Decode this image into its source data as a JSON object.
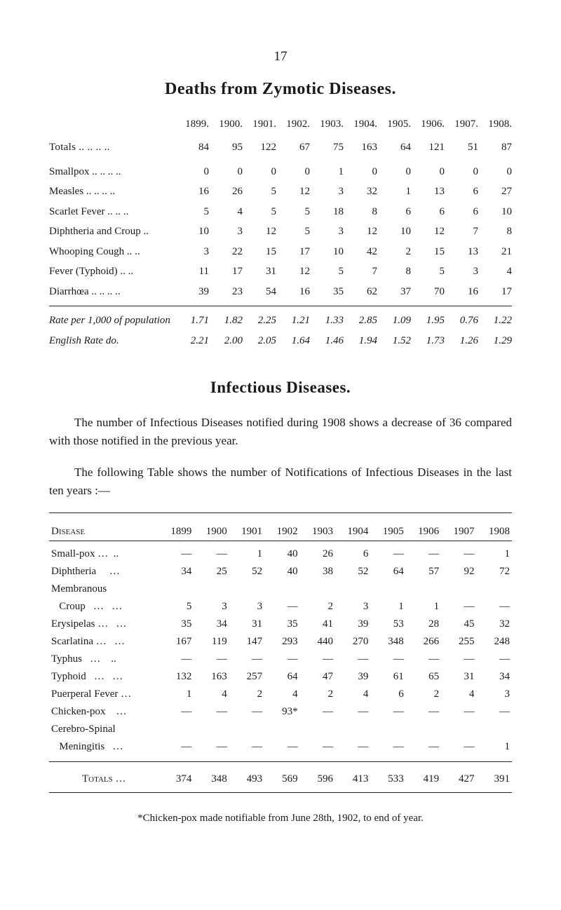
{
  "page_number": "17",
  "title": "Deaths from Zymotic Diseases.",
  "deaths_table": {
    "years": [
      "1899.",
      "1900.",
      "1901.",
      "1902.",
      "1903.",
      "1904.",
      "1905.",
      "1906.",
      "1907.",
      "1908."
    ],
    "rows": [
      {
        "label": "Totals    .. .. .. ..",
        "class": "smallcaps totals-lbl",
        "values": [
          "84",
          "95",
          "122",
          "67",
          "75",
          "163",
          "64",
          "121",
          "51",
          "87"
        ]
      },
      {
        "label": "Smallpox  .. .. .. ..",
        "values": [
          "0",
          "0",
          "0",
          "0",
          "1",
          "0",
          "0",
          "0",
          "0",
          "0"
        ]
      },
      {
        "label": "Measles   .. .. .. ..",
        "values": [
          "16",
          "26",
          "5",
          "12",
          "3",
          "32",
          "1",
          "13",
          "6",
          "27"
        ]
      },
      {
        "label": "Scarlet Fever  .. .. ..",
        "values": [
          "5",
          "4",
          "5",
          "5",
          "18",
          "8",
          "6",
          "6",
          "6",
          "10"
        ]
      },
      {
        "label": "Diphtheria and Croup ..",
        "values": [
          "10",
          "3",
          "12",
          "5",
          "3",
          "12",
          "10",
          "12",
          "7",
          "8"
        ]
      },
      {
        "label": "Whooping Cough  .. ..",
        "values": [
          "3",
          "22",
          "15",
          "17",
          "10",
          "42",
          "2",
          "15",
          "13",
          "21"
        ]
      },
      {
        "label": "Fever (Typhoid)  .. ..",
        "values": [
          "11",
          "17",
          "31",
          "12",
          "5",
          "7",
          "8",
          "5",
          "3",
          "4"
        ]
      },
      {
        "label": "Diarrhœa  .. .. .. ..",
        "values": [
          "39",
          "23",
          "54",
          "16",
          "35",
          "62",
          "37",
          "70",
          "16",
          "17"
        ]
      }
    ],
    "rate_rows": [
      {
        "label": "Rate per 1,000 of population",
        "values": [
          "1.71",
          "1.82",
          "2.25",
          "1.21",
          "1.33",
          "2.85",
          "1.09",
          "1.95",
          "0.76",
          "1.22"
        ]
      },
      {
        "label": "English Rate        do.",
        "values": [
          "2.21",
          "2.00",
          "2.05",
          "1.64",
          "1.46",
          "1.94",
          "1.52",
          "1.73",
          "1.26",
          "1.29"
        ]
      }
    ]
  },
  "section_title": "Infectious Diseases.",
  "para1": "The number of Infectious Diseases notified during 1908 shows a decrease of 36 compared with those notified in the previous year.",
  "para2": "The following Table shows the number of Notifications of Infectious Diseases in the last ten years :—",
  "disease_table": {
    "header_label": "Disease",
    "years": [
      "1899",
      "1900",
      "1901",
      "1902",
      "1903",
      "1904",
      "1905",
      "1906",
      "1907",
      "1908"
    ],
    "rows": [
      {
        "label": "Small-pox …  ..",
        "values": [
          "—",
          "—",
          "1",
          "40",
          "26",
          "6",
          "—",
          "—",
          "—",
          "1"
        ]
      },
      {
        "label": "Diphtheria     …",
        "values": [
          "34",
          "25",
          "52",
          "40",
          "38",
          "52",
          "64",
          "57",
          "92",
          "72"
        ]
      },
      {
        "label": "Membranous",
        "values": [
          "",
          "",
          "",
          "",
          "",
          "",
          "",
          "",
          "",
          ""
        ]
      },
      {
        "label": "   Croup   …   …",
        "values": [
          "5",
          "3",
          "3",
          "—",
          "2",
          "3",
          "1",
          "1",
          "—",
          "—"
        ]
      },
      {
        "label": "Erysipelas …   …",
        "values": [
          "35",
          "34",
          "31",
          "35",
          "41",
          "39",
          "53",
          "28",
          "45",
          "32"
        ]
      },
      {
        "label": "Scarlatina …   …",
        "values": [
          "167",
          "119",
          "147",
          "293",
          "440",
          "270",
          "348",
          "266",
          "255",
          "248"
        ]
      },
      {
        "label": "Typhus   …    ..",
        "values": [
          "—",
          "—",
          "—",
          "—",
          "—",
          "—",
          "—",
          "—",
          "—",
          "—"
        ]
      },
      {
        "label": "Typhoid   …   …",
        "values": [
          "132",
          "163",
          "257",
          "64",
          "47",
          "39",
          "61",
          "65",
          "31",
          "34"
        ]
      },
      {
        "label": "Puerperal Fever …",
        "values": [
          "1",
          "4",
          "2",
          "4",
          "2",
          "4",
          "6",
          "2",
          "4",
          "3"
        ]
      },
      {
        "label": "Chicken-pox    …",
        "values": [
          "—",
          "—",
          "—",
          "93*",
          "—",
          "—",
          "—",
          "—",
          "—",
          "—"
        ]
      },
      {
        "label": "Cerebro-Spinal",
        "values": [
          "",
          "",
          "",
          "",
          "",
          "",
          "",
          "",
          "",
          ""
        ]
      },
      {
        "label": "   Meningitis   …",
        "values": [
          "—",
          "—",
          "—",
          "—",
          "—",
          "—",
          "—",
          "—",
          "—",
          "1"
        ]
      }
    ],
    "totals": {
      "label": "Totals    …",
      "values": [
        "374",
        "348",
        "493",
        "569",
        "596",
        "413",
        "533",
        "419",
        "427",
        "391"
      ]
    }
  },
  "footnote": "*Chicken-pox made notifiable from June 28th, 1902, to end of year."
}
